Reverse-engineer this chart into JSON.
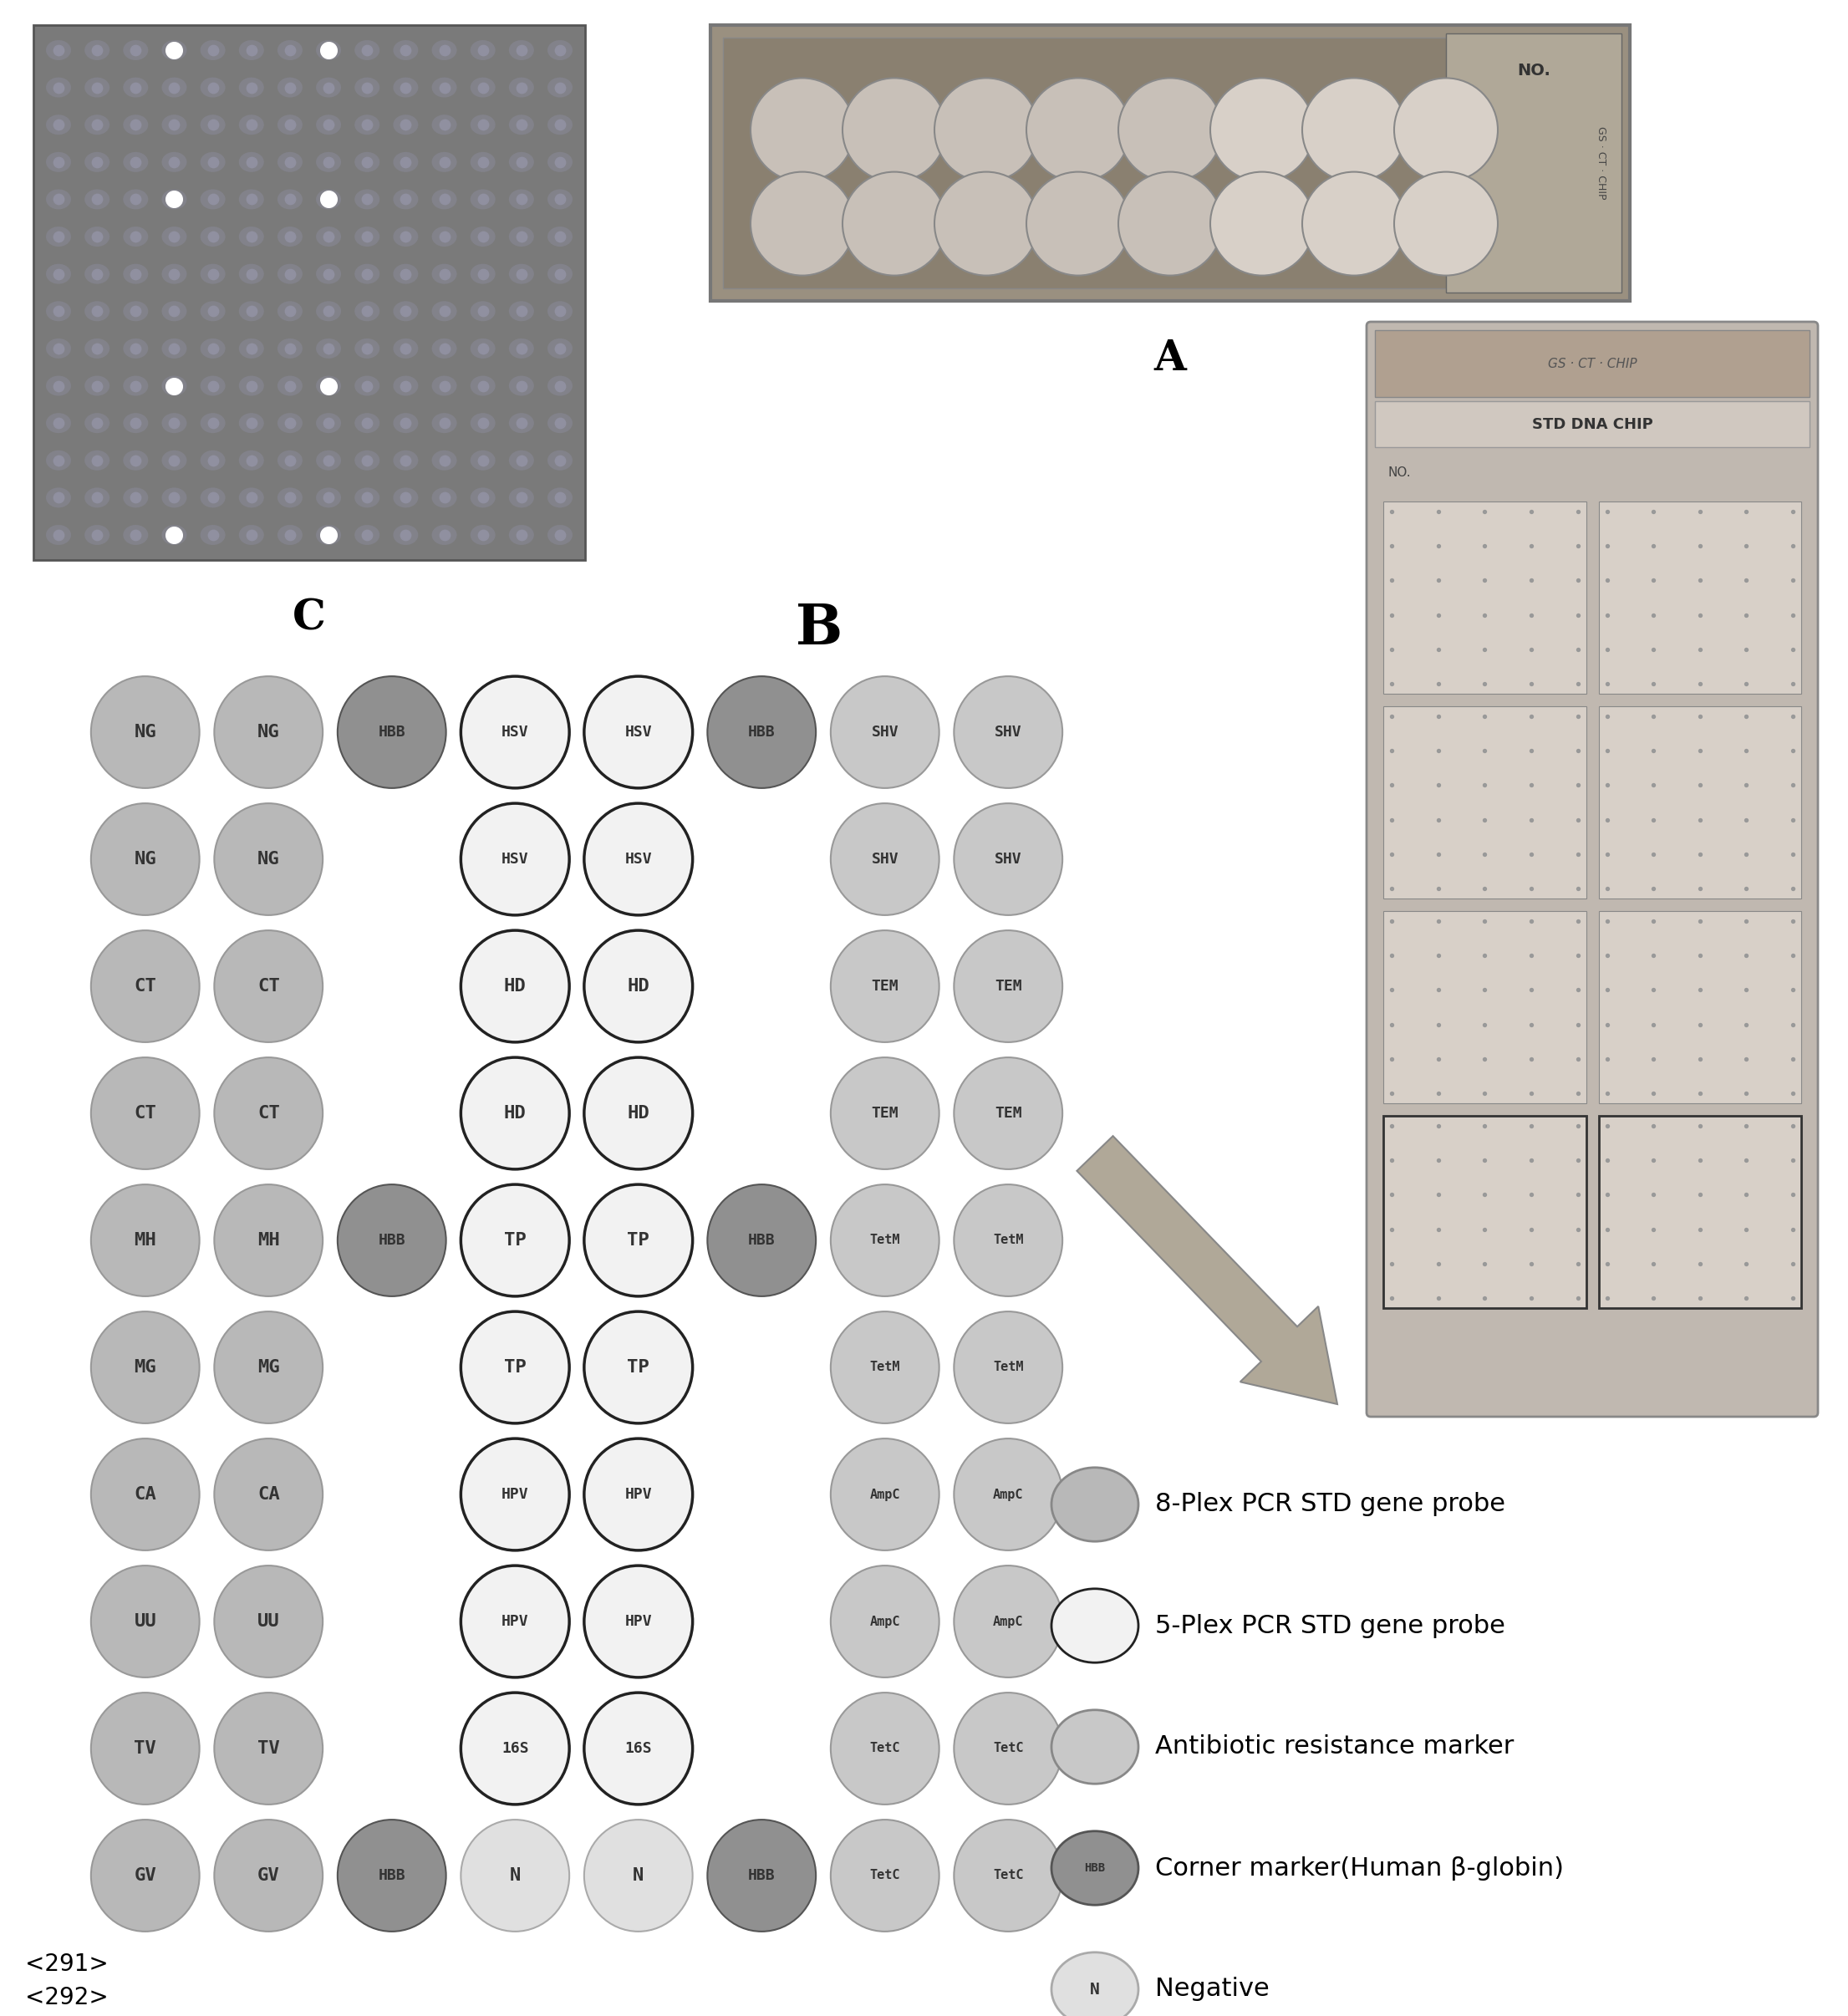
{
  "background_color": "#ffffff",
  "grid_rows": 10,
  "grid_cols": 8,
  "circle_labels": [
    [
      "NG",
      "NG",
      "HBB",
      "HSV",
      "HSV",
      "HBB",
      "SHV",
      "SHV"
    ],
    [
      "NG",
      "NG",
      "",
      "HSV",
      "HSV",
      "",
      "SHV",
      "SHV"
    ],
    [
      "CT",
      "CT",
      "",
      "HD",
      "HD",
      "",
      "TEM",
      "TEM"
    ],
    [
      "CT",
      "CT",
      "",
      "HD",
      "HD",
      "",
      "TEM",
      "TEM"
    ],
    [
      "MH",
      "MH",
      "HBB",
      "TP",
      "TP",
      "HBB",
      "TetM",
      "TetM"
    ],
    [
      "MG",
      "MG",
      "",
      "TP",
      "TP",
      "",
      "TetM",
      "TetM"
    ],
    [
      "CA",
      "CA",
      "",
      "HPV",
      "HPV",
      "",
      "AmpC",
      "AmpC"
    ],
    [
      "UU",
      "UU",
      "",
      "HPV",
      "HPV",
      "",
      "AmpC",
      "AmpC"
    ],
    [
      "TV",
      "TV",
      "",
      "16S",
      "16S",
      "",
      "TetC",
      "TetC"
    ],
    [
      "GV",
      "GV",
      "HBB",
      "N",
      "N",
      "HBB",
      "TetC",
      "TetC"
    ]
  ],
  "color_map": {
    "NG": "#b8b8b8",
    "CT": "#b8b8b8",
    "MH": "#b8b8b8",
    "MG": "#b8b8b8",
    "CA": "#b8b8b8",
    "UU": "#b8b8b8",
    "TV": "#b8b8b8",
    "GV": "#b8b8b8",
    "HSV": "#f2f2f2",
    "HD": "#f2f2f2",
    "TP": "#f2f2f2",
    "HPV": "#f2f2f2",
    "16S": "#f2f2f2",
    "N": "#e0e0e0",
    "SHV": "#c8c8c8",
    "TEM": "#c8c8c8",
    "TetM": "#c8c8c8",
    "AmpC": "#c8c8c8",
    "TetC": "#c8c8c8",
    "HBB": "#909090",
    "": "none"
  },
  "outline_map": {
    "HSV": "#222222",
    "HD": "#222222",
    "TP": "#222222",
    "HPV": "#222222",
    "16S": "#222222",
    "N": "#aaaaaa",
    "HBB": "#555555",
    "SHV": "#999999",
    "TEM": "#999999",
    "TetM": "#999999",
    "AmpC": "#999999",
    "TetC": "#999999",
    "NG": "#999999",
    "CT": "#999999",
    "MH": "#999999",
    "MG": "#999999",
    "CA": "#999999",
    "UU": "#999999",
    "TV": "#999999",
    "GV": "#999999"
  },
  "legend_items": [
    {
      "fc": "#b8b8b8",
      "ec": "#888888",
      "label": "8-Plex PCR STD gene probe",
      "text": ""
    },
    {
      "fc": "#f2f2f2",
      "ec": "#222222",
      "label": "5-Plex PCR STD gene probe",
      "text": ""
    },
    {
      "fc": "#c8c8c8",
      "ec": "#888888",
      "label": "Antibiotic resistance marker",
      "text": ""
    },
    {
      "fc": "#909090",
      "ec": "#555555",
      "label": "Corner marker(Human β-globin)",
      "text": "HBB"
    },
    {
      "fc": "#e0e0e0",
      "ec": "#aaaaaa",
      "label": "Negative",
      "text": "N"
    }
  ],
  "text_291": "<291>",
  "text_292": "<292>"
}
